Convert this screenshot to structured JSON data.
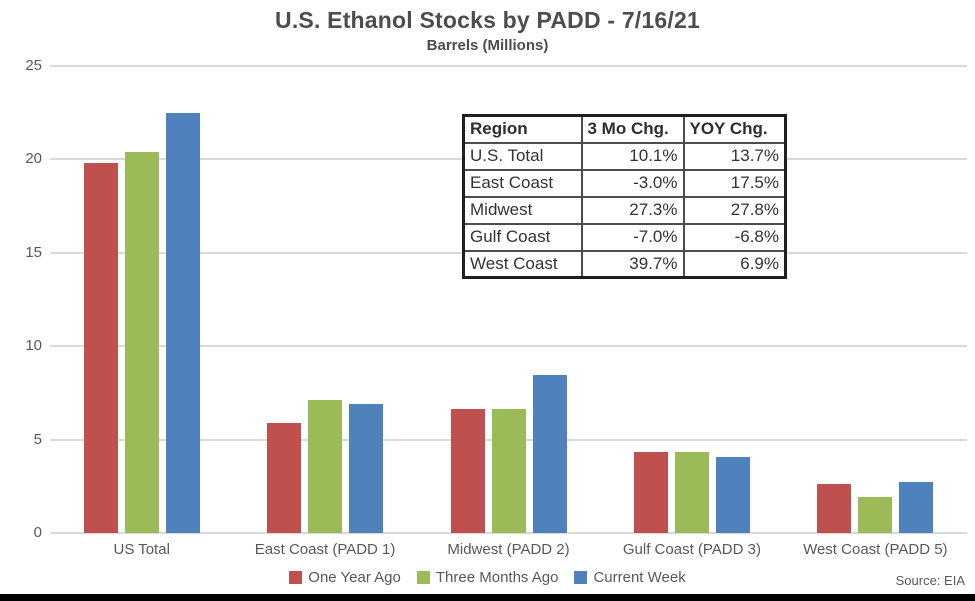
{
  "header": {
    "title": "U.S. Ethanol Stocks by PADD - 7/16/21",
    "subtitle": "Barrels (Millions)"
  },
  "source": "Source: EIA",
  "colors": {
    "one_year_ago": "#C0504D",
    "three_months_ago": "#9BBB59",
    "current_week": "#4F81BD",
    "gridline": "#D9D9D9",
    "text_gray": "#595959"
  },
  "chart_data": {
    "type": "bar",
    "title": "U.S. Ethanol Stocks by PADD - 7/16/21",
    "subtitle": "Barrels (Millions)",
    "categories": [
      "US Total",
      "East Coast (PADD 1)",
      "Midwest (PADD 2)",
      "Gulf Coast (PADD 3)",
      "West Coast (PADD 5)"
    ],
    "series": [
      {
        "name": "One Year Ago",
        "color": "#C0504D",
        "values": [
          19.8,
          5.9,
          6.65,
          4.35,
          2.6
        ]
      },
      {
        "name": "Three Months Ago",
        "color": "#9BBB59",
        "values": [
          20.4,
          7.1,
          6.65,
          4.35,
          1.95
        ]
      },
      {
        "name": "Current Week",
        "color": "#4F81BD",
        "values": [
          22.5,
          6.9,
          8.45,
          4.05,
          2.75
        ]
      }
    ],
    "ylabel": "",
    "xlabel": "",
    "ylim": [
      0,
      25
    ],
    "ytick_step": 5,
    "grid": true,
    "legend_position": "bottom"
  },
  "table": {
    "headers": [
      "Region",
      "3 Mo Chg.",
      "YOY Chg."
    ],
    "rows": [
      [
        "U.S. Total",
        "10.1%",
        "13.7%"
      ],
      [
        "East Coast",
        "-3.0%",
        "17.5%"
      ],
      [
        "Midwest",
        "27.3%",
        "27.8%"
      ],
      [
        "Gulf Coast",
        "-7.0%",
        "-6.8%"
      ],
      [
        "West Coast",
        "39.7%",
        "6.9%"
      ]
    ]
  }
}
